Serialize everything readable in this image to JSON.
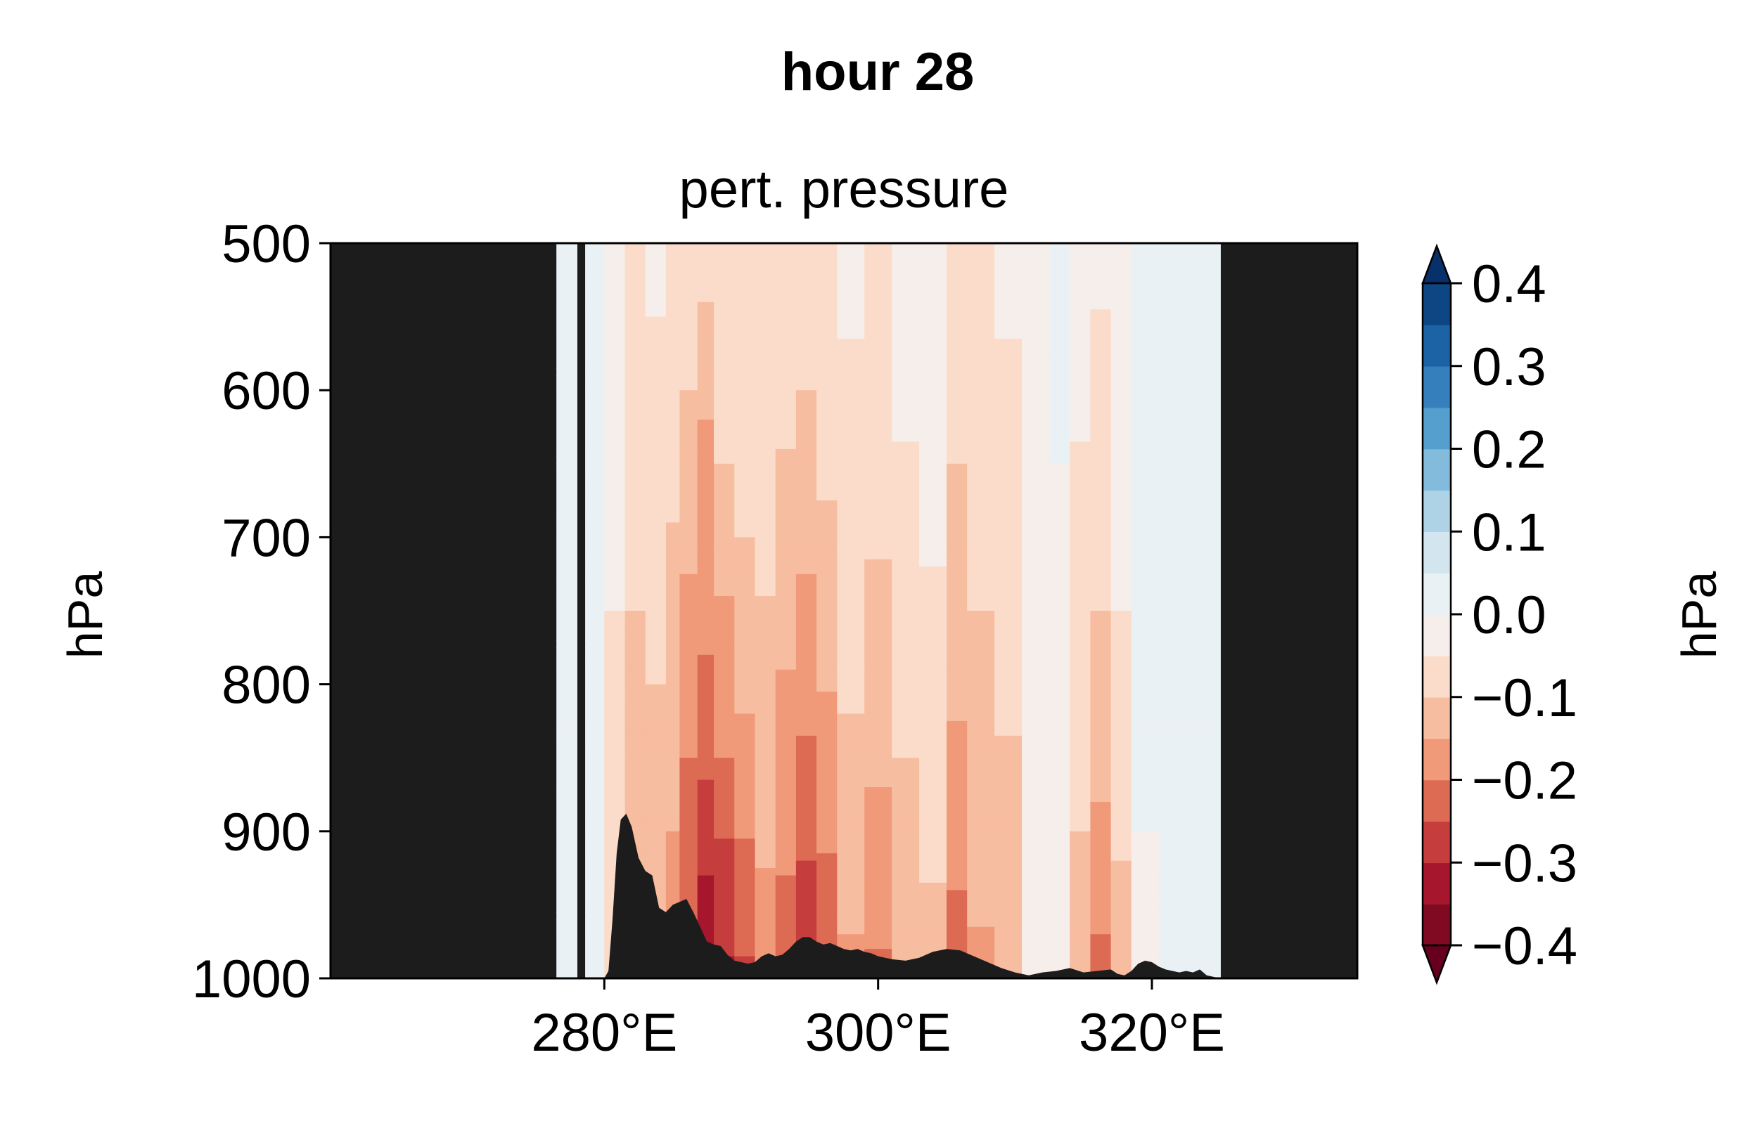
{
  "chart_data": {
    "type": "heatmap",
    "suptitle": "hour 28",
    "title": "pert. pressure",
    "ylabel": "hPa",
    "xlabel": "",
    "xlim": [
      260,
      335
    ],
    "ylim": [
      1000,
      500
    ],
    "y_inverted": true,
    "xticks": [
      280,
      300,
      320
    ],
    "xtick_labels": [
      "280°E",
      "300°E",
      "320°E"
    ],
    "yticks": [
      500,
      600,
      700,
      800,
      900,
      1000
    ],
    "ytick_labels": [
      "500",
      "600",
      "700",
      "800",
      "900",
      "1000"
    ],
    "data_extent_x": [
      276.5,
      325
    ],
    "missing_color": "#1c1c1c",
    "colorbar": {
      "label": "hPa",
      "levels": [
        -0.4,
        -0.35,
        -0.3,
        -0.25,
        -0.2,
        -0.15,
        -0.1,
        -0.05,
        0.0,
        0.05,
        0.1,
        0.15,
        0.2,
        0.25,
        0.3,
        0.35,
        0.4
      ],
      "colors": [
        "#7f0a22",
        "#a6172d",
        "#c53e3d",
        "#dd6a53",
        "#f09a7a",
        "#f7bda1",
        "#fbdcca",
        "#f6eeea",
        "#eaf1f4",
        "#d3e6f0",
        "#aed2e6",
        "#82bbdc",
        "#549fcd",
        "#3580bc",
        "#1c63a6",
        "#0d4683"
      ],
      "ticks": [
        0.4,
        0.3,
        0.2,
        0.1,
        0.0,
        -0.1,
        -0.2,
        -0.3,
        -0.4
      ],
      "tick_labels": [
        "0.4",
        "0.3",
        "0.2",
        "0.1",
        "0.0",
        "−0.1",
        "−0.2",
        "−0.3",
        "−0.4"
      ],
      "extend": "both",
      "cmap": "RdBu"
    },
    "columns": [
      {
        "x0": 276.5,
        "x1": 278.0,
        "profile": [
          [
            500,
            0.02
          ],
          [
            1000,
            0.02
          ]
        ]
      },
      {
        "x0": 278.6,
        "x1": 280.0,
        "profile": [
          [
            500,
            0.02
          ],
          [
            850,
            0.03
          ],
          [
            1000,
            0.05
          ]
        ]
      },
      {
        "x0": 280.0,
        "x1": 281.5,
        "profile": [
          [
            500,
            -0.02
          ],
          [
            700,
            -0.04
          ],
          [
            850,
            -0.07
          ],
          [
            1000,
            -0.09
          ]
        ]
      },
      {
        "x0": 281.5,
        "x1": 283.0,
        "profile": [
          [
            500,
            -0.06
          ],
          [
            650,
            -0.08
          ],
          [
            800,
            -0.11
          ],
          [
            1000,
            -0.13
          ]
        ]
      },
      {
        "x0": 283.0,
        "x1": 284.5,
        "profile": [
          [
            500,
            -0.04
          ],
          [
            650,
            -0.07
          ],
          [
            800,
            -0.1
          ],
          [
            1000,
            -0.13
          ]
        ]
      },
      {
        "x0": 284.5,
        "x1": 285.5,
        "profile": [
          [
            500,
            -0.06
          ],
          [
            650,
            -0.09
          ],
          [
            800,
            -0.13
          ],
          [
            1000,
            -0.17
          ]
        ]
      },
      {
        "x0": 285.5,
        "x1": 286.8,
        "profile": [
          [
            500,
            -0.07
          ],
          [
            600,
            -0.1
          ],
          [
            700,
            -0.14
          ],
          [
            800,
            -0.18
          ],
          [
            900,
            -0.22
          ],
          [
            1000,
            -0.26
          ]
        ]
      },
      {
        "x0": 286.8,
        "x1": 288.0,
        "profile": [
          [
            500,
            -0.08
          ],
          [
            560,
            -0.11
          ],
          [
            620,
            -0.15
          ],
          [
            780,
            -0.2
          ],
          [
            880,
            -0.26
          ],
          [
            940,
            -0.31
          ],
          [
            1000,
            -0.34
          ]
        ]
      },
      {
        "x0": 288.0,
        "x1": 289.5,
        "profile": [
          [
            500,
            -0.07
          ],
          [
            650,
            -0.1
          ],
          [
            720,
            -0.14
          ],
          [
            850,
            -0.2
          ],
          [
            930,
            -0.27
          ],
          [
            1000,
            -0.31
          ]
        ]
      },
      {
        "x0": 289.5,
        "x1": 291.0,
        "profile": [
          [
            500,
            -0.06
          ],
          [
            700,
            -0.1
          ],
          [
            820,
            -0.15
          ],
          [
            920,
            -0.21
          ],
          [
            1000,
            -0.26
          ]
        ]
      },
      {
        "x0": 291.0,
        "x1": 292.5,
        "profile": [
          [
            500,
            -0.05
          ],
          [
            700,
            -0.09
          ],
          [
            850,
            -0.13
          ],
          [
            1000,
            -0.17
          ]
        ]
      },
      {
        "x0": 292.5,
        "x1": 294.0,
        "profile": [
          [
            500,
            -0.06
          ],
          [
            640,
            -0.1
          ],
          [
            760,
            -0.14
          ],
          [
            880,
            -0.18
          ],
          [
            1000,
            -0.23
          ]
        ]
      },
      {
        "x0": 294.0,
        "x1": 295.5,
        "profile": [
          [
            500,
            -0.07
          ],
          [
            600,
            -0.1
          ],
          [
            700,
            -0.14
          ],
          [
            820,
            -0.19
          ],
          [
            920,
            -0.25
          ],
          [
            1000,
            -0.3
          ]
        ]
      },
      {
        "x0": 295.5,
        "x1": 297.0,
        "profile": [
          [
            500,
            -0.06
          ],
          [
            650,
            -0.09
          ],
          [
            780,
            -0.14
          ],
          [
            900,
            -0.19
          ],
          [
            1000,
            -0.25
          ]
        ]
      },
      {
        "x0": 297.0,
        "x1": 299.0,
        "profile": [
          [
            500,
            -0.04
          ],
          [
            700,
            -0.07
          ],
          [
            860,
            -0.11
          ],
          [
            1000,
            -0.16
          ]
        ]
      },
      {
        "x0": 299.0,
        "x1": 301.0,
        "profile": [
          [
            500,
            -0.05
          ],
          [
            650,
            -0.08
          ],
          [
            780,
            -0.12
          ],
          [
            900,
            -0.16
          ],
          [
            1000,
            -0.21
          ]
        ]
      },
      {
        "x0": 301.0,
        "x1": 303.0,
        "profile": [
          [
            500,
            -0.03
          ],
          [
            700,
            -0.06
          ],
          [
            850,
            -0.1
          ],
          [
            1000,
            -0.14
          ]
        ]
      },
      {
        "x0": 303.0,
        "x1": 305.0,
        "profile": [
          [
            500,
            -0.02
          ],
          [
            720,
            -0.05
          ],
          [
            900,
            -0.09
          ],
          [
            1000,
            -0.12
          ]
        ]
      },
      {
        "x0": 305.0,
        "x1": 306.5,
        "profile": [
          [
            500,
            -0.06
          ],
          [
            650,
            -0.1
          ],
          [
            800,
            -0.14
          ],
          [
            920,
            -0.19
          ],
          [
            1000,
            -0.23
          ]
        ]
      },
      {
        "x0": 306.5,
        "x1": 308.5,
        "profile": [
          [
            500,
            -0.05
          ],
          [
            700,
            -0.09
          ],
          [
            850,
            -0.12
          ],
          [
            1000,
            -0.16
          ]
        ]
      },
      {
        "x0": 308.5,
        "x1": 310.5,
        "profile": [
          [
            500,
            -0.04
          ],
          [
            700,
            -0.07
          ],
          [
            880,
            -0.11
          ],
          [
            1000,
            -0.14
          ]
        ]
      },
      {
        "x0": 310.5,
        "x1": 312.5,
        "profile": [
          [
            500,
            -0.02
          ],
          [
            800,
            -0.03
          ],
          [
            1000,
            -0.04
          ]
        ]
      },
      {
        "x0": 312.5,
        "x1": 314.0,
        "profile": [
          [
            500,
            0.01
          ],
          [
            800,
            -0.01
          ],
          [
            1000,
            -0.02
          ]
        ]
      },
      {
        "x0": 314.0,
        "x1": 315.5,
        "profile": [
          [
            500,
            -0.03
          ],
          [
            700,
            -0.06
          ],
          [
            900,
            -0.1
          ],
          [
            1000,
            -0.13
          ]
        ]
      },
      {
        "x0": 315.5,
        "x1": 317.0,
        "profile": [
          [
            500,
            -0.04
          ],
          [
            680,
            -0.08
          ],
          [
            820,
            -0.12
          ],
          [
            920,
            -0.17
          ],
          [
            1000,
            -0.22
          ]
        ]
      },
      {
        "x0": 317.0,
        "x1": 318.5,
        "profile": [
          [
            500,
            -0.02
          ],
          [
            750,
            -0.05
          ],
          [
            900,
            -0.09
          ],
          [
            1000,
            -0.14
          ]
        ]
      },
      {
        "x0": 318.5,
        "x1": 320.5,
        "profile": [
          [
            500,
            0.01
          ],
          [
            900,
            0.0
          ],
          [
            1000,
            -0.02
          ]
        ]
      },
      {
        "x0": 320.5,
        "x1": 325.0,
        "profile": [
          [
            500,
            0.02
          ],
          [
            1000,
            0.02
          ]
        ]
      }
    ],
    "terrain": [
      [
        276.5,
        1000
      ],
      [
        280.0,
        1000
      ],
      [
        280.3,
        995
      ],
      [
        280.6,
        960
      ],
      [
        280.9,
        915
      ],
      [
        281.2,
        892
      ],
      [
        281.6,
        888
      ],
      [
        282.0,
        897
      ],
      [
        282.5,
        918
      ],
      [
        283.0,
        927
      ],
      [
        283.5,
        930
      ],
      [
        284.0,
        952
      ],
      [
        284.5,
        955
      ],
      [
        285.0,
        950
      ],
      [
        285.5,
        948
      ],
      [
        286.0,
        946
      ],
      [
        286.5,
        955
      ],
      [
        287.0,
        965
      ],
      [
        287.5,
        975
      ],
      [
        288.0,
        977
      ],
      [
        288.5,
        978
      ],
      [
        289.0,
        984
      ],
      [
        289.5,
        988
      ],
      [
        290.0,
        989
      ],
      [
        290.5,
        990
      ],
      [
        291.0,
        989
      ],
      [
        291.5,
        985
      ],
      [
        292.0,
        983
      ],
      [
        292.5,
        985
      ],
      [
        293.0,
        984
      ],
      [
        293.5,
        980
      ],
      [
        294.0,
        975
      ],
      [
        294.5,
        972
      ],
      [
        295.0,
        972
      ],
      [
        295.5,
        975
      ],
      [
        296.0,
        977
      ],
      [
        296.5,
        976
      ],
      [
        297.0,
        978
      ],
      [
        297.5,
        980
      ],
      [
        298.0,
        981
      ],
      [
        298.5,
        980
      ],
      [
        299.0,
        982
      ],
      [
        299.5,
        983
      ],
      [
        300.0,
        985
      ],
      [
        301.0,
        987
      ],
      [
        302.0,
        988
      ],
      [
        303.0,
        986
      ],
      [
        304.0,
        982
      ],
      [
        305.0,
        980
      ],
      [
        306.0,
        981
      ],
      [
        307.0,
        985
      ],
      [
        308.0,
        989
      ],
      [
        309.0,
        993
      ],
      [
        310.0,
        996
      ],
      [
        311.0,
        998
      ],
      [
        312.0,
        996
      ],
      [
        313.0,
        995
      ],
      [
        314.0,
        993
      ],
      [
        315.0,
        996
      ],
      [
        316.0,
        995
      ],
      [
        317.0,
        994
      ],
      [
        317.5,
        997
      ],
      [
        318.0,
        998
      ],
      [
        318.5,
        995
      ],
      [
        319.0,
        990
      ],
      [
        319.5,
        988
      ],
      [
        320.0,
        989
      ],
      [
        320.5,
        992
      ],
      [
        321.0,
        994
      ],
      [
        321.5,
        995
      ],
      [
        322.0,
        996
      ],
      [
        322.5,
        995
      ],
      [
        323.0,
        996
      ],
      [
        323.5,
        994
      ],
      [
        324.0,
        998
      ],
      [
        325.0,
        1000
      ]
    ]
  }
}
